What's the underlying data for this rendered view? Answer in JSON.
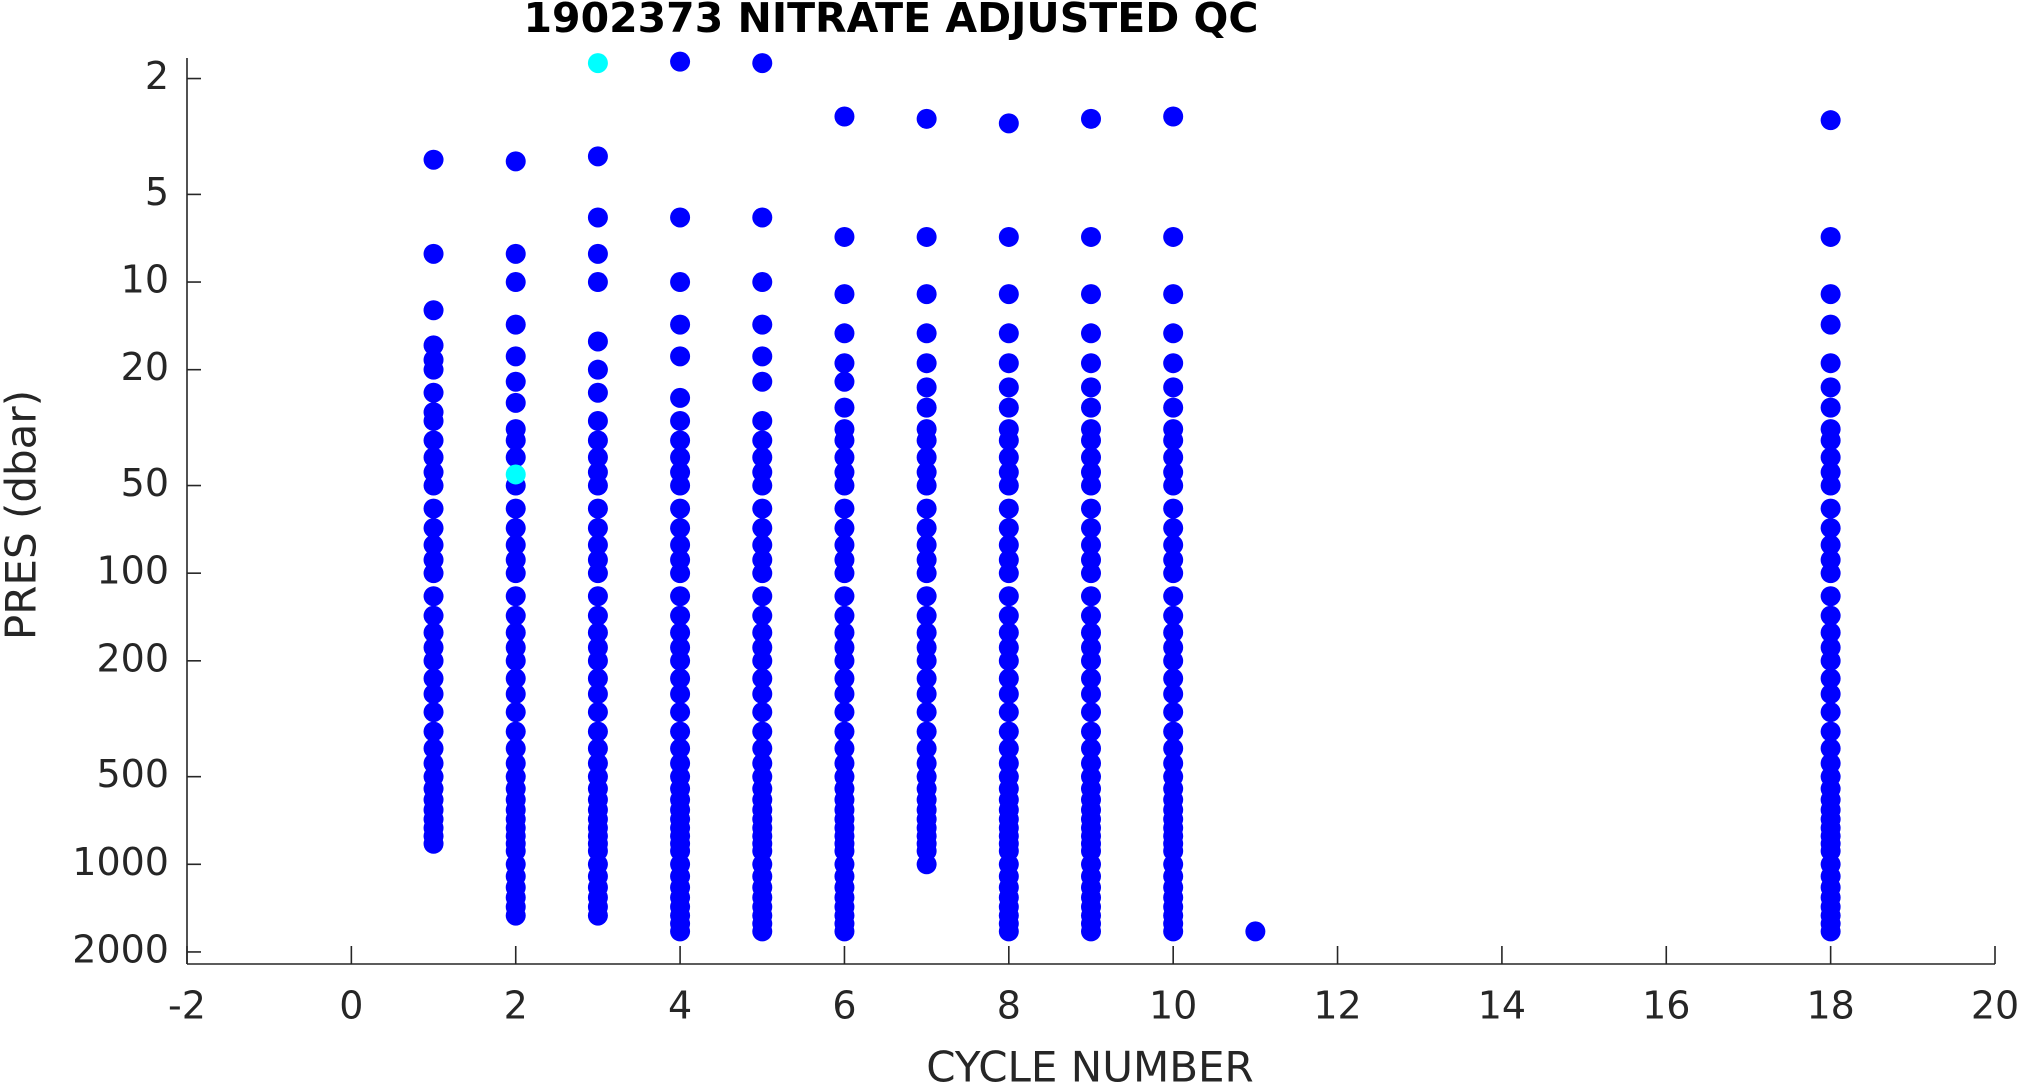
{
  "chart_data": {
    "type": "scatter",
    "title": "1902373  NITRATE ADJUSTED QC",
    "x_label": "CYCLE NUMBER",
    "y_label": "PRES (dbar)",
    "xlim": [
      -2,
      20
    ],
    "xticks": [
      -2,
      0,
      2,
      4,
      6,
      8,
      10,
      12,
      14,
      16,
      18,
      20
    ],
    "ylim": [
      1.7,
      2200
    ],
    "yticks": [
      2,
      5,
      10,
      20,
      50,
      100,
      200,
      500,
      1000,
      2000
    ],
    "ylog": true,
    "yreverse": true,
    "grid": false,
    "series": [
      {
        "color": "#0000ff",
        "x": [
          1,
          1,
          1,
          1,
          1,
          1,
          1,
          1,
          1,
          1,
          1,
          1,
          1,
          1,
          1,
          1,
          1,
          1,
          1,
          1,
          1,
          1,
          1,
          1,
          1,
          1,
          1,
          1,
          1,
          1,
          1,
          1,
          1,
          1,
          1,
          1,
          1
        ],
        "values": [
          3.8,
          8,
          12.5,
          16.5,
          18.5,
          20,
          24,
          28,
          30,
          35,
          40,
          45,
          50,
          60,
          70,
          80,
          90,
          100,
          120,
          140,
          160,
          180,
          200,
          230,
          260,
          300,
          350,
          400,
          450,
          500,
          550,
          600,
          650,
          700,
          750,
          800,
          850
        ]
      },
      {
        "color": "#0000ff",
        "x": [
          2,
          2,
          2,
          2,
          2,
          2,
          2,
          2,
          2,
          2,
          2,
          2,
          2,
          2,
          2,
          2,
          2,
          2,
          2,
          2,
          2,
          2,
          2,
          2,
          2,
          2,
          2,
          2,
          2,
          2,
          2,
          2,
          2,
          2,
          2,
          2,
          2,
          2,
          2,
          2,
          2,
          2
        ],
        "values": [
          3.85,
          8,
          10,
          14,
          18,
          22,
          26,
          32,
          35,
          40,
          50,
          60,
          70,
          80,
          90,
          100,
          120,
          140,
          160,
          180,
          200,
          230,
          260,
          300,
          350,
          400,
          450,
          500,
          550,
          600,
          650,
          700,
          750,
          800,
          850,
          900,
          1000,
          1100,
          1200,
          1300,
          1400,
          1500
        ]
      },
      {
        "color": "#0000ff",
        "x": [
          3,
          3,
          3,
          3,
          3,
          3,
          3,
          3,
          3,
          3,
          3,
          3,
          3,
          3,
          3,
          3,
          3,
          3,
          3,
          3,
          3,
          3,
          3,
          3,
          3,
          3,
          3,
          3,
          3,
          3,
          3,
          3,
          3,
          3,
          3,
          3,
          3,
          3,
          3,
          3,
          3,
          3,
          3
        ],
        "values": [
          3.7,
          6,
          8,
          10,
          16,
          20,
          24,
          30,
          35,
          40,
          45,
          50,
          60,
          70,
          80,
          90,
          100,
          120,
          140,
          160,
          180,
          200,
          230,
          260,
          300,
          350,
          400,
          450,
          500,
          550,
          600,
          650,
          700,
          750,
          800,
          850,
          900,
          1000,
          1100,
          1200,
          1300,
          1400,
          1500
        ]
      },
      {
        "color": "#0000ff",
        "x": [
          4,
          4,
          4,
          4,
          4,
          4,
          4,
          4,
          4,
          4,
          4,
          4,
          4,
          4,
          4,
          4,
          4,
          4,
          4,
          4,
          4,
          4,
          4,
          4,
          4,
          4,
          4,
          4,
          4,
          4,
          4,
          4,
          4,
          4,
          4,
          4,
          4,
          4,
          4,
          4,
          4,
          4,
          4,
          4
        ],
        "values": [
          1.75,
          6,
          10,
          14,
          18,
          25,
          30,
          35,
          40,
          45,
          50,
          60,
          70,
          80,
          90,
          100,
          120,
          140,
          160,
          180,
          200,
          230,
          260,
          300,
          350,
          400,
          450,
          500,
          550,
          600,
          650,
          700,
          750,
          800,
          850,
          900,
          1000,
          1100,
          1200,
          1300,
          1400,
          1500,
          1600,
          1700
        ]
      },
      {
        "color": "#0000ff",
        "x": [
          5,
          5,
          5,
          5,
          5,
          5,
          5,
          5,
          5,
          5,
          5,
          5,
          5,
          5,
          5,
          5,
          5,
          5,
          5,
          5,
          5,
          5,
          5,
          5,
          5,
          5,
          5,
          5,
          5,
          5,
          5,
          5,
          5,
          5,
          5,
          5,
          5,
          5,
          5,
          5,
          5,
          5,
          5,
          5
        ],
        "values": [
          1.77,
          6,
          10,
          14,
          18,
          22,
          30,
          35,
          40,
          45,
          50,
          60,
          70,
          80,
          90,
          100,
          120,
          140,
          160,
          180,
          200,
          230,
          260,
          300,
          350,
          400,
          450,
          500,
          550,
          600,
          650,
          700,
          750,
          800,
          850,
          900,
          1000,
          1100,
          1200,
          1300,
          1400,
          1500,
          1600,
          1700
        ]
      },
      {
        "color": "#0000ff",
        "x": [
          6,
          6,
          6,
          6,
          6,
          6,
          6,
          6,
          6,
          6,
          6,
          6,
          6,
          6,
          6,
          6,
          6,
          6,
          6,
          6,
          6,
          6,
          6,
          6,
          6,
          6,
          6,
          6,
          6,
          6,
          6,
          6,
          6,
          6,
          6,
          6,
          6,
          6,
          6,
          6,
          6,
          6,
          6,
          6,
          6
        ],
        "values": [
          2.7,
          7,
          11,
          15,
          19,
          22,
          27,
          32,
          35,
          40,
          45,
          50,
          60,
          70,
          80,
          90,
          100,
          120,
          140,
          160,
          180,
          200,
          230,
          260,
          300,
          350,
          400,
          450,
          500,
          550,
          600,
          650,
          700,
          750,
          800,
          850,
          900,
          1000,
          1100,
          1200,
          1300,
          1400,
          1500,
          1600,
          1700
        ]
      },
      {
        "color": "#0000ff",
        "x": [
          7,
          7,
          7,
          7,
          7,
          7,
          7,
          7,
          7,
          7,
          7,
          7,
          7,
          7,
          7,
          7,
          7,
          7,
          7,
          7,
          7,
          7,
          7,
          7,
          7,
          7,
          7,
          7,
          7,
          7,
          7,
          7,
          7,
          7,
          7,
          7,
          7,
          7
        ],
        "values": [
          2.75,
          7,
          11,
          15,
          19,
          23,
          27,
          32,
          35,
          40,
          45,
          50,
          60,
          70,
          80,
          90,
          100,
          120,
          140,
          160,
          180,
          200,
          230,
          260,
          300,
          350,
          400,
          450,
          500,
          550,
          600,
          650,
          700,
          750,
          800,
          850,
          900,
          1000
        ]
      },
      {
        "color": "#0000ff",
        "x": [
          8,
          8,
          8,
          8,
          8,
          8,
          8,
          8,
          8,
          8,
          8,
          8,
          8,
          8,
          8,
          8,
          8,
          8,
          8,
          8,
          8,
          8,
          8,
          8,
          8,
          8,
          8,
          8,
          8,
          8,
          8,
          8,
          8,
          8,
          8,
          8,
          8,
          8,
          8,
          8,
          8,
          8,
          8,
          8,
          8
        ],
        "values": [
          2.85,
          7,
          11,
          15,
          19,
          23,
          27,
          32,
          35,
          40,
          45,
          50,
          60,
          70,
          80,
          90,
          100,
          120,
          140,
          160,
          180,
          200,
          230,
          260,
          300,
          350,
          400,
          450,
          500,
          550,
          600,
          650,
          700,
          750,
          800,
          850,
          900,
          1000,
          1100,
          1200,
          1300,
          1400,
          1500,
          1600,
          1700
        ]
      },
      {
        "color": "#0000ff",
        "x": [
          9,
          9,
          9,
          9,
          9,
          9,
          9,
          9,
          9,
          9,
          9,
          9,
          9,
          9,
          9,
          9,
          9,
          9,
          9,
          9,
          9,
          9,
          9,
          9,
          9,
          9,
          9,
          9,
          9,
          9,
          9,
          9,
          9,
          9,
          9,
          9,
          9,
          9,
          9,
          9,
          9,
          9,
          9,
          9,
          9
        ],
        "values": [
          2.75,
          7,
          11,
          15,
          19,
          23,
          27,
          32,
          35,
          40,
          45,
          50,
          60,
          70,
          80,
          90,
          100,
          120,
          140,
          160,
          180,
          200,
          230,
          260,
          300,
          350,
          400,
          450,
          500,
          550,
          600,
          650,
          700,
          750,
          800,
          850,
          900,
          1000,
          1100,
          1200,
          1300,
          1400,
          1500,
          1600,
          1700
        ]
      },
      {
        "color": "#0000ff",
        "x": [
          10,
          10,
          10,
          10,
          10,
          10,
          10,
          10,
          10,
          10,
          10,
          10,
          10,
          10,
          10,
          10,
          10,
          10,
          10,
          10,
          10,
          10,
          10,
          10,
          10,
          10,
          10,
          10,
          10,
          10,
          10,
          10,
          10,
          10,
          10,
          10,
          10,
          10,
          10,
          10,
          10,
          10,
          10,
          10,
          10
        ],
        "values": [
          2.7,
          7,
          11,
          15,
          19,
          23,
          27,
          32,
          35,
          40,
          45,
          50,
          60,
          70,
          80,
          90,
          100,
          120,
          140,
          160,
          180,
          200,
          230,
          260,
          300,
          350,
          400,
          450,
          500,
          550,
          600,
          650,
          700,
          750,
          800,
          850,
          900,
          1000,
          1100,
          1200,
          1300,
          1400,
          1500,
          1600,
          1700
        ]
      },
      {
        "color": "#0000ff",
        "x": [
          11
        ],
        "values": [
          1700
        ]
      },
      {
        "color": "#0000ff",
        "x": [
          18,
          18,
          18,
          18,
          18,
          18,
          18,
          18,
          18,
          18,
          18,
          18,
          18,
          18,
          18,
          18,
          18,
          18,
          18,
          18,
          18,
          18,
          18,
          18,
          18,
          18,
          18,
          18,
          18,
          18,
          18,
          18,
          18,
          18,
          18,
          18,
          18,
          18,
          18,
          18,
          18,
          18,
          18,
          18,
          18
        ],
        "values": [
          2.78,
          7,
          11,
          14,
          19,
          23,
          27,
          32,
          35,
          40,
          45,
          50,
          60,
          70,
          80,
          90,
          100,
          120,
          140,
          160,
          180,
          200,
          230,
          260,
          300,
          350,
          400,
          450,
          500,
          550,
          600,
          650,
          700,
          750,
          800,
          850,
          900,
          1000,
          1100,
          1200,
          1300,
          1400,
          1500,
          1600,
          1700
        ]
      },
      {
        "color": "#00ffff",
        "x": [
          2,
          3
        ],
        "values": [
          45.8,
          1.77
        ]
      }
    ]
  }
}
